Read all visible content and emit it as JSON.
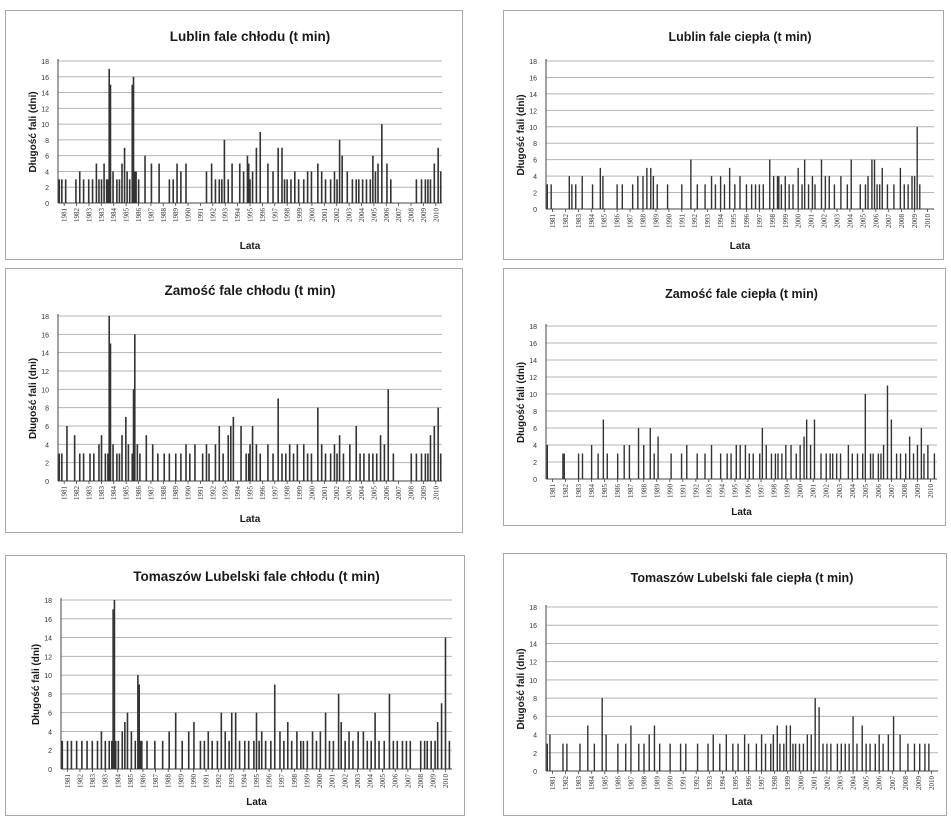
{
  "colors": {
    "bar": "#333333",
    "grid": "#b5b5b5",
    "axis": "#444444",
    "border": "#a8a8a8"
  },
  "chart_data": [
    {
      "type": "bar",
      "title": "Lublin fale chłodu (t min)",
      "xlabel": "Lata",
      "ylabel": "Długość fali (dni)",
      "ylim": [
        0,
        18
      ],
      "yticks": [
        0,
        2,
        4,
        6,
        8,
        10,
        12,
        14,
        16,
        18
      ],
      "grid": true,
      "xtick_labels": [
        "1981",
        "1982",
        "1983",
        "1983",
        "1984",
        "1985",
        "1986",
        "1987",
        "1988",
        "1989",
        "1990",
        "1991",
        "1992",
        "1993",
        "1994",
        "1995",
        "1996",
        "1997",
        "1998",
        "1999",
        "2000",
        "2001",
        "2002",
        "2003",
        "2004",
        "2005",
        "2006",
        "2007",
        "2008",
        "2009",
        "2010"
      ],
      "x": [
        1981.1,
        1981.3,
        1981.6,
        1982.4,
        1982.7,
        1983.0,
        1983.4,
        1983.7,
        1984.0,
        1984.2,
        1984.4,
        1984.6,
        1984.8,
        1984.9,
        1985.0,
        1985.1,
        1985.3,
        1985.6,
        1985.8,
        1986.0,
        1986.2,
        1986.4,
        1986.6,
        1986.8,
        1986.9,
        1987.0,
        1987.1,
        1987.3,
        1987.8,
        1988.3,
        1988.9,
        1989.7,
        1990.0,
        1990.3,
        1990.6,
        1991.0,
        1992.6,
        1993.0,
        1993.3,
        1993.6,
        1993.8,
        1994.0,
        1994.3,
        1994.6,
        1995.2,
        1995.5,
        1995.8,
        1995.9,
        1996.0,
        1996.2,
        1996.5,
        1996.8,
        1997.4,
        1997.8,
        1998.2,
        1998.5,
        1998.7,
        1998.9,
        1999.2,
        1999.5,
        1999.8,
        2000.2,
        2000.5,
        2000.8,
        2001.3,
        2001.6,
        2001.9,
        2002.3,
        2002.6,
        2002.8,
        2003.0,
        2003.2,
        2003.6,
        2004.0,
        2004.3,
        2004.5,
        2004.8,
        2005.1,
        2005.4,
        2005.6,
        2005.8,
        2006.0,
        2006.3,
        2006.7,
        2007.0,
        2009.0,
        2009.4,
        2009.7,
        2009.9,
        2010.1,
        2010.4,
        2010.7,
        2010.9
      ],
      "values": [
        3,
        3,
        3,
        3,
        4,
        3,
        3,
        3,
        5,
        3,
        3,
        5,
        3,
        3,
        17,
        15,
        4,
        3,
        3,
        5,
        7,
        4,
        3,
        15,
        16,
        4,
        4,
        3,
        6,
        5,
        5,
        3,
        3,
        5,
        4,
        5,
        4,
        5,
        3,
        3,
        3,
        8,
        3,
        5,
        5,
        4,
        6,
        5,
        3,
        4,
        7,
        9,
        5,
        4,
        7,
        7,
        3,
        3,
        3,
        4,
        3,
        3,
        4,
        4,
        5,
        4,
        3,
        3,
        4,
        3,
        8,
        6,
        4,
        3,
        3,
        3,
        3,
        3,
        3,
        6,
        4,
        5,
        10,
        5,
        3,
        3,
        3,
        3,
        3,
        3,
        5,
        7,
        4
      ]
    },
    {
      "type": "bar",
      "title": "Lublin fale ciepła (t min)",
      "xlabel": "Lata",
      "ylabel": "Długość fali (dni)",
      "ylim": [
        0,
        18
      ],
      "yticks": [
        0,
        2,
        4,
        6,
        8,
        10,
        12,
        14,
        16,
        18
      ],
      "grid": true,
      "xtick_labels": [
        "1981",
        "1982",
        "1983",
        "1984",
        "1985",
        "1986",
        "1987",
        "1988",
        "1989",
        "1990",
        "1991",
        "1992",
        "1993",
        "1994",
        "1995",
        "1996",
        "1997",
        "1998",
        "1999",
        "2000",
        "2001",
        "2002",
        "2003",
        "2004",
        "2005",
        "2006",
        "2007",
        "2008",
        "2009",
        "2010"
      ],
      "x": [
        1981.1,
        1981.4,
        1982.8,
        1983.0,
        1983.3,
        1983.8,
        1984.6,
        1985.2,
        1985.4,
        1986.5,
        1986.9,
        1987.7,
        1988.1,
        1988.5,
        1988.8,
        1989.1,
        1989.3,
        1989.6,
        1990.4,
        1991.5,
        1992.2,
        1992.7,
        1993.3,
        1993.8,
        1994.1,
        1994.5,
        1994.8,
        1995.2,
        1995.6,
        1996.0,
        1996.5,
        1996.9,
        1997.2,
        1997.5,
        1997.8,
        1998.3,
        1998.6,
        1998.9,
        1999.0,
        1999.2,
        1999.5,
        1999.8,
        2000.1,
        2000.5,
        2000.8,
        2001.0,
        2001.3,
        2001.6,
        2001.8,
        2002.3,
        2002.6,
        2002.9,
        2003.3,
        2003.8,
        2004.3,
        2004.6,
        2005.3,
        2005.7,
        2005.9,
        2006.2,
        2006.4,
        2006.6,
        2006.8,
        2007.0,
        2007.4,
        2007.9,
        2008.4,
        2008.7,
        2009.0,
        2009.3,
        2009.5,
        2009.7,
        2009.9
      ],
      "values": [
        3,
        3,
        4,
        3,
        3,
        4,
        3,
        5,
        4,
        3,
        3,
        3,
        4,
        4,
        5,
        5,
        4,
        3,
        3,
        3,
        6,
        3,
        3,
        4,
        3,
        4,
        3,
        5,
        3,
        4,
        3,
        3,
        3,
        3,
        3,
        6,
        4,
        4,
        4,
        3,
        4,
        3,
        3,
        5,
        3,
        6,
        3,
        4,
        3,
        6,
        4,
        4,
        3,
        4,
        3,
        6,
        3,
        3,
        4,
        6,
        6,
        3,
        3,
        5,
        3,
        3,
        5,
        3,
        3,
        4,
        4,
        10,
        3
      ]
    },
    {
      "type": "bar",
      "title": "Zamość fale chłodu (t min)",
      "xlabel": "Lata",
      "ylabel": "Długość fali (dni)",
      "ylim": [
        0,
        18
      ],
      "yticks": [
        0,
        2,
        4,
        6,
        8,
        10,
        12,
        14,
        16,
        18
      ],
      "grid": true,
      "xtick_labels": [
        "1981",
        "1982",
        "1983",
        "1983",
        "1984",
        "1985",
        "1986",
        "1987",
        "1988",
        "1989",
        "1990",
        "1991",
        "1992",
        "1993",
        "1994",
        "1995",
        "1996",
        "1997",
        "1998",
        "1999",
        "2000",
        "2001",
        "2002",
        "2003",
        "2004",
        "2005",
        "2006",
        "2007",
        "2008",
        "2009",
        "2010"
      ],
      "x": [
        1981.1,
        1981.3,
        1981.7,
        1982.3,
        1982.7,
        1983.0,
        1983.5,
        1983.8,
        1984.2,
        1984.4,
        1984.7,
        1984.9,
        1985.0,
        1985.1,
        1985.3,
        1985.6,
        1985.8,
        1986.0,
        1986.3,
        1986.5,
        1986.8,
        1986.9,
        1987.0,
        1987.2,
        1987.4,
        1987.9,
        1988.4,
        1988.8,
        1989.3,
        1989.7,
        1990.2,
        1990.6,
        1991.0,
        1991.3,
        1991.7,
        1992.3,
        1992.6,
        1992.8,
        1993.3,
        1993.6,
        1993.9,
        1994.3,
        1994.5,
        1994.7,
        1995.3,
        1995.7,
        1995.9,
        1996.0,
        1996.2,
        1996.5,
        1996.8,
        1997.4,
        1997.8,
        1998.2,
        1998.5,
        1998.8,
        1999.1,
        1999.4,
        1999.7,
        2000.2,
        2000.5,
        2000.8,
        2001.3,
        2001.6,
        2001.9,
        2002.3,
        2002.6,
        2002.8,
        2003.0,
        2003.3,
        2003.8,
        2004.3,
        2004.6,
        2004.9,
        2005.3,
        2005.6,
        2005.9,
        2006.2,
        2006.5,
        2006.8,
        2007.2,
        2008.6,
        2009.0,
        2009.4,
        2009.7,
        2009.9,
        2010.1,
        2010.4,
        2010.7,
        2010.9
      ],
      "values": [
        3,
        3,
        6,
        5,
        3,
        3,
        3,
        3,
        4,
        5,
        3,
        3,
        18,
        15,
        4,
        3,
        3,
        5,
        7,
        4,
        3,
        10,
        16,
        4,
        3,
        5,
        4,
        3,
        3,
        3,
        3,
        3,
        4,
        3,
        4,
        3,
        4,
        3,
        4,
        6,
        3,
        5,
        6,
        7,
        6,
        3,
        3,
        4,
        6,
        4,
        3,
        4,
        3,
        9,
        3,
        3,
        4,
        3,
        4,
        4,
        3,
        3,
        8,
        4,
        3,
        3,
        4,
        3,
        5,
        3,
        4,
        6,
        3,
        3,
        3,
        3,
        3,
        5,
        4,
        10,
        3,
        3,
        3,
        3,
        3,
        3,
        5,
        6,
        8,
        3
      ]
    },
    {
      "type": "bar",
      "title": "Zamość fale ciepła (t min)",
      "xlabel": "Lata",
      "ylabel": "Długość fali (dni)",
      "ylim": [
        0,
        18
      ],
      "yticks": [
        0,
        2,
        4,
        6,
        8,
        10,
        12,
        14,
        16,
        18
      ],
      "grid": true,
      "xtick_labels": [
        "1981",
        "1982",
        "1983",
        "1984",
        "1985",
        "1986",
        "1987",
        "1988",
        "1989",
        "1990",
        "1991",
        "1992",
        "1993",
        "1994",
        "1995",
        "1996",
        "1997",
        "1998",
        "1999",
        "2000",
        "2001",
        "2002",
        "2003",
        "2004",
        "2005",
        "2006",
        "2007",
        "2008",
        "2009",
        "2010"
      ],
      "x": [
        1981.1,
        1982.3,
        1982.4,
        1983.5,
        1983.8,
        1984.5,
        1985.0,
        1985.4,
        1985.7,
        1986.5,
        1987.0,
        1987.4,
        1988.1,
        1988.5,
        1989.0,
        1989.3,
        1989.6,
        1990.6,
        1991.4,
        1991.8,
        1992.6,
        1993.2,
        1993.7,
        1994.4,
        1994.9,
        1995.2,
        1995.6,
        1995.9,
        1996.3,
        1996.6,
        1996.9,
        1997.4,
        1997.6,
        1997.9,
        1998.3,
        1998.6,
        1998.8,
        1999.1,
        1999.4,
        1999.8,
        2000.2,
        2000.5,
        2000.8,
        2001.0,
        2001.3,
        2001.6,
        2002.1,
        2002.5,
        2002.8,
        2003.0,
        2003.3,
        2003.6,
        2004.2,
        2004.5,
        2004.9,
        2005.3,
        2005.5,
        2005.9,
        2006.1,
        2006.5,
        2006.7,
        2006.9,
        2007.2,
        2007.5,
        2007.9,
        2008.2,
        2008.6,
        2008.9,
        2009.2,
        2009.5,
        2009.8,
        2010.0,
        2010.3,
        2010.8
      ],
      "values": [
        4,
        3,
        3,
        3,
        3,
        4,
        3,
        7,
        3,
        3,
        4,
        4,
        6,
        4,
        6,
        3,
        5,
        3,
        3,
        4,
        3,
        3,
        4,
        3,
        3,
        3,
        4,
        4,
        4,
        3,
        3,
        3,
        6,
        4,
        3,
        3,
        3,
        3,
        4,
        4,
        3,
        4,
        5,
        7,
        4,
        7,
        3,
        3,
        3,
        3,
        3,
        3,
        4,
        3,
        3,
        3,
        10,
        3,
        3,
        3,
        3,
        4,
        11,
        7,
        3,
        3,
        3,
        5,
        3,
        4,
        6,
        3,
        4,
        3
      ]
    },
    {
      "type": "bar",
      "title": "Tomaszów Lubelski fale chłodu (t min)",
      "xlabel": "Lata",
      "ylabel": "Długość fali (dni)",
      "ylim": [
        0,
        18
      ],
      "yticks": [
        0,
        2,
        4,
        6,
        8,
        10,
        12,
        14,
        16,
        18
      ],
      "grid": true,
      "xtick_labels": [
        "1981",
        "1982",
        "1983",
        "1983",
        "1984",
        "1985",
        "1986",
        "1987",
        "1988",
        "1989",
        "1990",
        "1991",
        "1992",
        "1993",
        "1994",
        "1995",
        "1996",
        "1997",
        "1998",
        "1999",
        "2000",
        "2001",
        "2002",
        "2003",
        "2004",
        "2005",
        "2006",
        "2007",
        "2008",
        "2009",
        "2010"
      ],
      "x": [
        1981.1,
        1981.5,
        1981.8,
        1982.2,
        1982.6,
        1983.0,
        1983.4,
        1983.8,
        1984.1,
        1984.4,
        1984.7,
        1984.9,
        1985.0,
        1985.1,
        1985.2,
        1985.4,
        1985.7,
        1985.9,
        1986.1,
        1986.4,
        1986.7,
        1986.9,
        1987.0,
        1987.1,
        1987.2,
        1987.6,
        1988.2,
        1988.8,
        1989.3,
        1989.8,
        1990.3,
        1990.8,
        1991.2,
        1991.7,
        1992.0,
        1992.3,
        1992.6,
        1993.0,
        1993.3,
        1993.6,
        1993.9,
        1994.1,
        1994.4,
        1994.7,
        1995.1,
        1995.4,
        1995.8,
        1996.0,
        1996.2,
        1996.4,
        1996.7,
        1997.1,
        1997.4,
        1997.8,
        1998.1,
        1998.4,
        1998.7,
        1999.1,
        1999.4,
        1999.6,
        1999.9,
        2000.3,
        2000.6,
        2000.9,
        2001.3,
        2001.6,
        2001.9,
        2002.3,
        2002.5,
        2002.8,
        2003.1,
        2003.4,
        2003.8,
        2004.2,
        2004.5,
        2004.8,
        2005.1,
        2005.4,
        2005.8,
        2006.2,
        2006.5,
        2006.8,
        2007.2,
        2007.5,
        2007.8,
        2008.6,
        2008.9,
        2009.1,
        2009.4,
        2009.7,
        2009.9,
        2010.2,
        2010.5,
        2010.8
      ],
      "values": [
        3,
        3,
        3,
        3,
        3,
        3,
        3,
        3,
        4,
        3,
        3,
        3,
        17,
        18,
        3,
        3,
        4,
        5,
        6,
        4,
        3,
        10,
        9,
        3,
        3,
        3,
        3,
        3,
        4,
        6,
        3,
        4,
        5,
        3,
        3,
        4,
        3,
        3,
        6,
        4,
        3,
        6,
        6,
        3,
        3,
        3,
        3,
        6,
        3,
        4,
        3,
        3,
        9,
        4,
        3,
        5,
        3,
        4,
        3,
        3,
        3,
        4,
        3,
        4,
        6,
        3,
        3,
        8,
        5,
        3,
        4,
        3,
        4,
        4,
        3,
        3,
        6,
        3,
        3,
        8,
        3,
        3,
        3,
        3,
        3,
        3,
        3,
        3,
        3,
        3,
        5,
        7,
        14,
        3
      ]
    },
    {
      "type": "bar",
      "title": "Tomaszów Lubelski fale ciepła (t min)",
      "xlabel": "Lata",
      "ylabel": "Długość fali (dni)",
      "ylim": [
        0,
        18
      ],
      "yticks": [
        0,
        2,
        4,
        6,
        8,
        10,
        12,
        14,
        16,
        18
      ],
      "grid": true,
      "xtick_labels": [
        "1981",
        "1982",
        "1983",
        "1984",
        "1985",
        "1986",
        "1987",
        "1988",
        "1989",
        "1990",
        "1991",
        "1992",
        "1993",
        "1994",
        "1995",
        "1996",
        "1997",
        "1998",
        "1999",
        "2000",
        "2001",
        "2002",
        "2003",
        "2004",
        "2005",
        "2006",
        "2007",
        "2008",
        "2009",
        "2010"
      ],
      "x": [
        1981.1,
        1981.3,
        1982.3,
        1982.6,
        1983.6,
        1984.2,
        1984.7,
        1985.3,
        1985.6,
        1986.5,
        1987.1,
        1987.5,
        1988.1,
        1988.5,
        1988.9,
        1989.3,
        1989.7,
        1990.5,
        1991.3,
        1991.7,
        1992.6,
        1993.4,
        1993.8,
        1994.3,
        1994.8,
        1995.3,
        1995.7,
        1996.2,
        1996.5,
        1997.1,
        1997.5,
        1997.8,
        1998.2,
        1998.4,
        1998.7,
        1998.9,
        1999.2,
        1999.4,
        1999.7,
        1999.9,
        2000.1,
        2000.4,
        2000.7,
        2001.0,
        2001.3,
        2001.6,
        2001.9,
        2002.2,
        2002.5,
        2002.8,
        2003.3,
        2003.6,
        2003.9,
        2004.2,
        2004.5,
        2004.8,
        2005.2,
        2005.5,
        2005.8,
        2006.2,
        2006.5,
        2006.8,
        2007.2,
        2007.6,
        2008.1,
        2008.7,
        2009.2,
        2009.6,
        2010.0,
        2010.3
      ],
      "values": [
        3,
        4,
        3,
        3,
        3,
        5,
        3,
        8,
        4,
        3,
        3,
        5,
        3,
        3,
        4,
        5,
        3,
        3,
        3,
        3,
        3,
        3,
        4,
        3,
        4,
        3,
        3,
        4,
        3,
        3,
        4,
        3,
        3,
        4,
        5,
        3,
        3,
        5,
        5,
        3,
        3,
        3,
        3,
        4,
        4,
        8,
        7,
        3,
        3,
        3,
        3,
        3,
        3,
        3,
        6,
        3,
        5,
        3,
        3,
        3,
        4,
        3,
        4,
        6,
        4,
        3,
        3,
        3,
        3,
        3
      ]
    }
  ]
}
